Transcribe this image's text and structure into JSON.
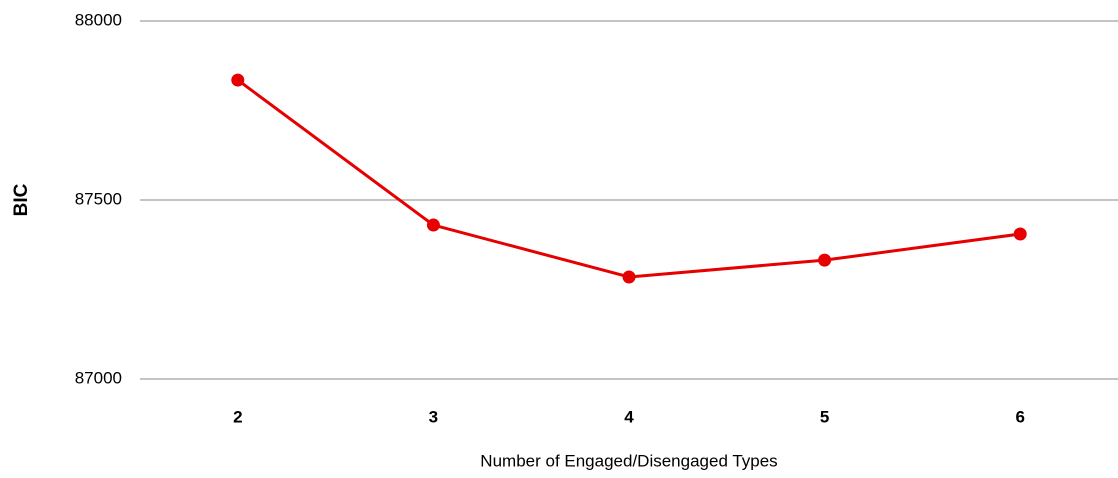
{
  "chart_data": {
    "type": "line",
    "x_label": "Number of Engaged/Disengaged Types",
    "y_label": "BIC",
    "categories": [
      "2",
      "3",
      "4",
      "5",
      "6"
    ],
    "series": [
      {
        "name": "BIC",
        "color": "#e60000",
        "values": [
          87835,
          87430,
          87285,
          87332,
          87405
        ]
      }
    ],
    "ylim": [
      87000,
      88000
    ],
    "yticks": [
      87000,
      87500,
      88000
    ],
    "grid": true
  }
}
